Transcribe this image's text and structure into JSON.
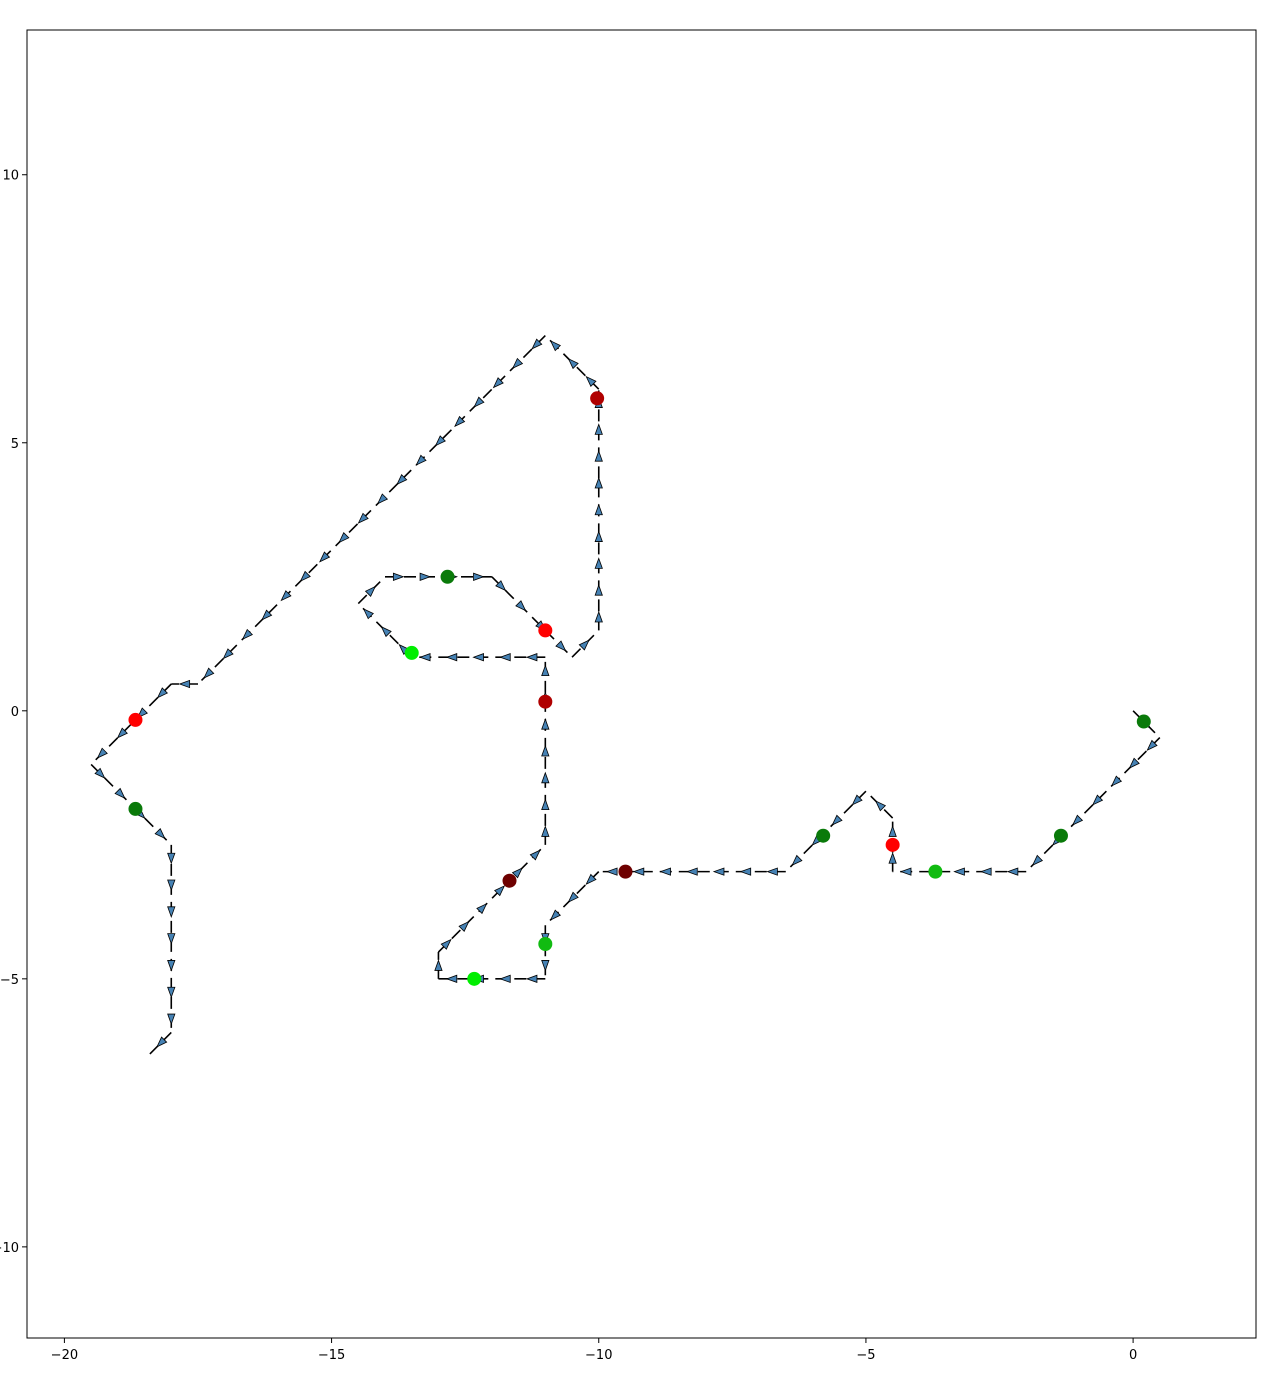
{
  "chart_data": {
    "type": "scatter",
    "title": "",
    "xlabel": "",
    "ylabel": "",
    "xlim": [
      -20.7,
      2.3
    ],
    "ylim": [
      -11.7,
      12.7
    ],
    "x_ticks": [
      {
        "value": -20,
        "label": "−20"
      },
      {
        "value": -15,
        "label": "−15"
      },
      {
        "value": -10,
        "label": "−10"
      },
      {
        "value": -5,
        "label": "−5"
      },
      {
        "value": 0,
        "label": "0"
      }
    ],
    "y_ticks": [
      {
        "value": 10,
        "label": "10"
      },
      {
        "value": 5,
        "label": "5"
      },
      {
        "value": 0,
        "label": "0"
      },
      {
        "value": -5,
        "label": "−5"
      },
      {
        "value": -10,
        "label": "−10"
      }
    ],
    "path_color": "#000000",
    "arrow_color": "#4682b4",
    "path": [
      [
        0,
        0
      ],
      [
        0.5,
        -0.5
      ],
      [
        -0.5,
        -1.5
      ],
      [
        -2,
        -3
      ],
      [
        -4.5,
        -3
      ],
      [
        -4.5,
        -2
      ],
      [
        -5,
        -1.5
      ],
      [
        -6.5,
        -3
      ],
      [
        -10,
        -3
      ],
      [
        -11,
        -4
      ],
      [
        -11,
        -5
      ],
      [
        -13,
        -5
      ],
      [
        -13,
        -4.5
      ],
      [
        -11,
        -2.5
      ],
      [
        -11,
        1
      ],
      [
        -13.5,
        1
      ],
      [
        -14.5,
        2
      ],
      [
        -14,
        2.5
      ],
      [
        -12,
        2.5
      ],
      [
        -10.5,
        1
      ],
      [
        -10,
        1.5
      ],
      [
        -10,
        6
      ],
      [
        -11,
        7
      ],
      [
        -17.5,
        0.5
      ],
      [
        -18,
        0.5
      ],
      [
        -19.5,
        -1
      ],
      [
        -18,
        -2.5
      ],
      [
        -18,
        -6
      ],
      [
        -18.4,
        -6.4
      ]
    ],
    "points": [
      {
        "x": 0.2,
        "y": -0.2,
        "color": "#0a7a0a"
      },
      {
        "x": -1.35,
        "y": -2.33,
        "color": "#0a7a0a"
      },
      {
        "x": -3.7,
        "y": -3.0,
        "color": "#11bb11"
      },
      {
        "x": -4.5,
        "y": -2.5,
        "color": "#ff0000"
      },
      {
        "x": -5.8,
        "y": -2.33,
        "color": "#0a7a0a"
      },
      {
        "x": -9.5,
        "y": -3.0,
        "color": "#6e0000"
      },
      {
        "x": -11,
        "y": -4.35,
        "color": "#11bb11"
      },
      {
        "x": -12.33,
        "y": -5.0,
        "color": "#00ee00"
      },
      {
        "x": -11.67,
        "y": -3.17,
        "color": "#6e0000"
      },
      {
        "x": -11,
        "y": 0.17,
        "color": "#b00000"
      },
      {
        "x": -13.5,
        "y": 1.08,
        "color": "#00ee00"
      },
      {
        "x": -12.83,
        "y": 2.5,
        "color": "#0a7a0a"
      },
      {
        "x": -11,
        "y": 1.5,
        "color": "#ff0000"
      },
      {
        "x": -10.03,
        "y": 5.83,
        "color": "#b00000"
      },
      {
        "x": -18.67,
        "y": -0.17,
        "color": "#ff0000"
      },
      {
        "x": -18.67,
        "y": -1.83,
        "color": "#0a7a0a"
      }
    ]
  }
}
